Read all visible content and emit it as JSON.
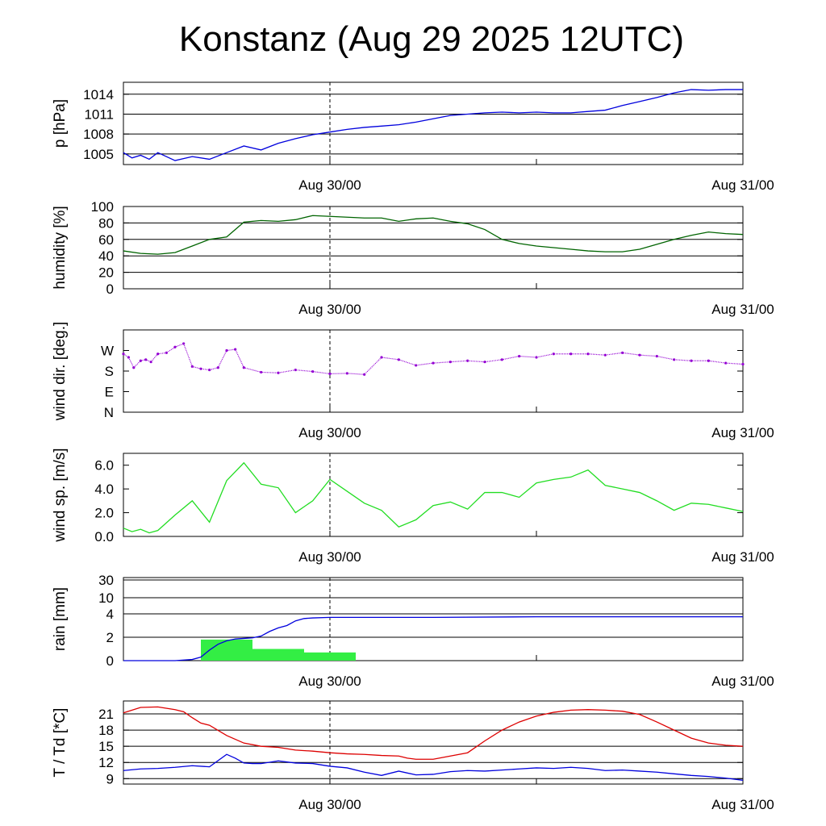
{
  "title": "Konstanz (Aug 29 2025 12UTC)",
  "x_tick_labels": [
    "Aug 30/00",
    "Aug 31/00"
  ],
  "colors": {
    "pressure": "#0000dd",
    "humidity": "#006400",
    "wind_dir": "#9400d3",
    "wind_speed": "#22dd22",
    "rain_line": "#0000dd",
    "rain_bar": "#33ee44",
    "temperature": "#dd0000",
    "dewpoint": "#0000dd"
  },
  "chart_data": [
    {
      "id": "pressure",
      "type": "line",
      "ylabel": "p [hPa]",
      "yticks": [
        {
          "v": 1005,
          "label": "1005"
        },
        {
          "v": 1008,
          "label": "1008"
        },
        {
          "v": 1011,
          "label": "1011"
        },
        {
          "v": 1014,
          "label": "1014"
        }
      ],
      "ylim": [
        1003.4,
        1015.8
      ],
      "grid": true,
      "series": [
        {
          "color_key": "pressure",
          "x": [
            0,
            0.5,
            1,
            1.5,
            2,
            3,
            4,
            5,
            6,
            7,
            8,
            9,
            10,
            11,
            12,
            13,
            14,
            15,
            16,
            17,
            18,
            19,
            20,
            21,
            22,
            23,
            24,
            25,
            26,
            27,
            28,
            29,
            30,
            31,
            32,
            33,
            34,
            35,
            36
          ],
          "y": [
            1005.2,
            1004.4,
            1004.8,
            1004.2,
            1005.2,
            1004,
            1004.6,
            1004.2,
            1005.2,
            1006.2,
            1005.6,
            1006.6,
            1007.3,
            1007.9,
            1008.3,
            1008.7,
            1009.0,
            1009.2,
            1009.4,
            1009.8,
            1010.3,
            1010.8,
            1011.0,
            1011.2,
            1011.3,
            1011.2,
            1011.3,
            1011.2,
            1011.2,
            1011.4,
            1011.6,
            1012.3,
            1012.9,
            1013.5,
            1014.2,
            1014.7,
            1014.6,
            1014.7,
            1014.7
          ]
        }
      ]
    },
    {
      "id": "humidity",
      "type": "line",
      "ylabel": "humidity [%]",
      "yticks": [
        {
          "v": 0,
          "label": "0"
        },
        {
          "v": 20,
          "label": "20"
        },
        {
          "v": 40,
          "label": "40"
        },
        {
          "v": 60,
          "label": "60"
        },
        {
          "v": 80,
          "label": "80"
        },
        {
          "v": 100,
          "label": "100"
        }
      ],
      "ylim": [
        0,
        100
      ],
      "grid": true,
      "series": [
        {
          "color_key": "humidity",
          "x": [
            0,
            1,
            2,
            3,
            4,
            5,
            6,
            7,
            8,
            9,
            10,
            11,
            12,
            13,
            14,
            15,
            16,
            17,
            18,
            19,
            20,
            21,
            22,
            23,
            24,
            25,
            26,
            27,
            28,
            29,
            30,
            31,
            32,
            33,
            34,
            35,
            36
          ],
          "y": [
            46,
            43,
            42,
            44,
            52,
            60,
            63,
            81,
            83,
            82,
            84,
            89,
            88,
            87,
            86,
            86,
            82,
            85,
            86,
            82,
            79,
            72,
            60,
            55,
            52,
            50,
            48,
            46,
            45,
            45,
            48,
            54,
            60,
            65,
            69,
            67,
            66
          ]
        }
      ]
    },
    {
      "id": "wind_dir",
      "type": "scatter",
      "ylabel": "wind dir. [deg.]",
      "yticks": [
        {
          "v": 0,
          "label": "N"
        },
        {
          "v": 90,
          "label": "E"
        },
        {
          "v": 180,
          "label": "S"
        },
        {
          "v": 270,
          "label": "W"
        }
      ],
      "ylim": [
        0,
        360
      ],
      "grid": false,
      "series": [
        {
          "color_key": "wind_dir",
          "x": [
            0,
            0.3,
            0.6,
            1,
            1.3,
            1.6,
            2,
            2.5,
            3,
            3.5,
            4,
            4.5,
            5,
            5.5,
            6,
            6.5,
            7,
            8,
            9,
            10,
            11,
            12,
            13,
            14,
            15,
            16,
            17,
            18,
            19,
            20,
            21,
            22,
            23,
            24,
            25,
            26,
            27,
            28,
            29,
            30,
            31,
            32,
            33,
            34,
            35,
            36
          ],
          "y": [
            255,
            240,
            195,
            225,
            230,
            220,
            255,
            260,
            285,
            300,
            200,
            190,
            185,
            195,
            270,
            275,
            195,
            175,
            172,
            185,
            178,
            168,
            170,
            165,
            240,
            230,
            205,
            215,
            220,
            225,
            220,
            230,
            245,
            240,
            255,
            255,
            255,
            250,
            260,
            250,
            245,
            230,
            225,
            225,
            215,
            210
          ]
        }
      ]
    },
    {
      "id": "wind_speed",
      "type": "line",
      "ylabel": "wind sp. [m/s]",
      "yticks": [
        {
          "v": 0,
          "label": "0.0"
        },
        {
          "v": 2,
          "label": "2.0"
        },
        {
          "v": 4,
          "label": "4.0"
        },
        {
          "v": 6,
          "label": "6.0"
        }
      ],
      "ylim": [
        0,
        7.0
      ],
      "grid": false,
      "series": [
        {
          "color_key": "wind_speed",
          "x": [
            0,
            0.5,
            1,
            1.5,
            2,
            3,
            4,
            5,
            6,
            7,
            8,
            9,
            10,
            11,
            12,
            13,
            14,
            15,
            16,
            17,
            18,
            19,
            20,
            21,
            22,
            23,
            24,
            25,
            26,
            27,
            28,
            29,
            30,
            31,
            32,
            33,
            34,
            35,
            36
          ],
          "y": [
            0.7,
            0.4,
            0.6,
            0.3,
            0.5,
            1.8,
            3.0,
            1.2,
            4.7,
            6.2,
            4.4,
            4.1,
            2.0,
            3.0,
            4.8,
            3.8,
            2.8,
            2.2,
            0.8,
            1.4,
            2.6,
            2.9,
            2.3,
            3.7,
            3.7,
            3.3,
            4.5,
            4.8,
            5.0,
            5.6,
            4.3,
            4.0,
            3.7,
            3.0,
            2.2,
            2.8,
            2.7,
            2.4,
            2.1
          ]
        }
      ]
    },
    {
      "id": "rain",
      "type": "bar",
      "ylabel": "rain [mm]",
      "yticks": [
        {
          "v": 0,
          "label": "0"
        },
        {
          "v": 2,
          "label": "2"
        },
        {
          "v": 4,
          "label": "4"
        },
        {
          "v": 10,
          "label": "10"
        },
        {
          "v": 30,
          "label": "30"
        }
      ],
      "scale": "piecewise",
      "grid": true,
      "bars": [
        {
          "x0": 4.5,
          "x1": 7.5,
          "value": 1.8
        },
        {
          "x0": 7.5,
          "x1": 10.5,
          "value": 1.0
        },
        {
          "x0": 10.5,
          "x1": 13.5,
          "value": 0.7
        }
      ],
      "series": [
        {
          "color_key": "rain_line",
          "x": [
            0,
            3,
            4,
            4.5,
            5,
            5.5,
            6,
            6.5,
            7,
            7.5,
            8,
            8.5,
            9,
            9.5,
            10,
            10.5,
            11,
            12,
            18,
            24,
            30,
            36
          ],
          "y": [
            0,
            0,
            0.1,
            0.3,
            0.9,
            1.4,
            1.7,
            1.85,
            1.9,
            1.95,
            2.1,
            2.5,
            2.8,
            3.0,
            3.4,
            3.6,
            3.65,
            3.7,
            3.7,
            3.75,
            3.75,
            3.75
          ]
        }
      ]
    },
    {
      "id": "temperature",
      "type": "line",
      "ylabel": "T / Td [*C]",
      "yticks": [
        {
          "v": 9,
          "label": "9"
        },
        {
          "v": 12,
          "label": "12"
        },
        {
          "v": 15,
          "label": "15"
        },
        {
          "v": 18,
          "label": "18"
        },
        {
          "v": 21,
          "label": "21"
        }
      ],
      "ylim": [
        8,
        23.4
      ],
      "grid": true,
      "series": [
        {
          "color_key": "temperature",
          "x": [
            0,
            1,
            2,
            3,
            3.5,
            4,
            4.5,
            5,
            6,
            7,
            8,
            9,
            10,
            11,
            12,
            13,
            14,
            15,
            16,
            16.5,
            17,
            18,
            19,
            20,
            21,
            22,
            23,
            24,
            25,
            26,
            27,
            28,
            29,
            30,
            31,
            32,
            33,
            34,
            35,
            36
          ],
          "y": [
            21.2,
            22.2,
            22.3,
            21.8,
            21.4,
            20.3,
            19.3,
            18.9,
            17.0,
            15.6,
            15.0,
            14.8,
            14.3,
            14.1,
            13.8,
            13.6,
            13.5,
            13.3,
            13.2,
            12.8,
            12.6,
            12.6,
            13.2,
            13.8,
            16.0,
            18.0,
            19.5,
            20.6,
            21.3,
            21.7,
            21.8,
            21.7,
            21.5,
            20.9,
            19.5,
            18.0,
            16.5,
            15.6,
            15.2,
            15.0
          ]
        },
        {
          "color_key": "dewpoint",
          "x": [
            0,
            1,
            2,
            3,
            4,
            5,
            6,
            6.5,
            7,
            7.5,
            8,
            9,
            10,
            11,
            12,
            13,
            14,
            15,
            16,
            17,
            18,
            19,
            20,
            21,
            22,
            23,
            24,
            25,
            26,
            27,
            28,
            29,
            30,
            31,
            32,
            33,
            34,
            35,
            36
          ],
          "y": [
            10.5,
            10.8,
            10.9,
            11.1,
            11.4,
            11.2,
            13.5,
            12.8,
            11.9,
            11.8,
            11.8,
            12.3,
            11.9,
            11.8,
            11.3,
            11.0,
            10.2,
            9.6,
            10.4,
            9.7,
            9.8,
            10.3,
            10.5,
            10.4,
            10.6,
            10.8,
            11.0,
            10.9,
            11.1,
            10.9,
            10.5,
            10.6,
            10.4,
            10.2,
            9.9,
            9.6,
            9.4,
            9.1,
            8.7
          ]
        }
      ]
    }
  ]
}
